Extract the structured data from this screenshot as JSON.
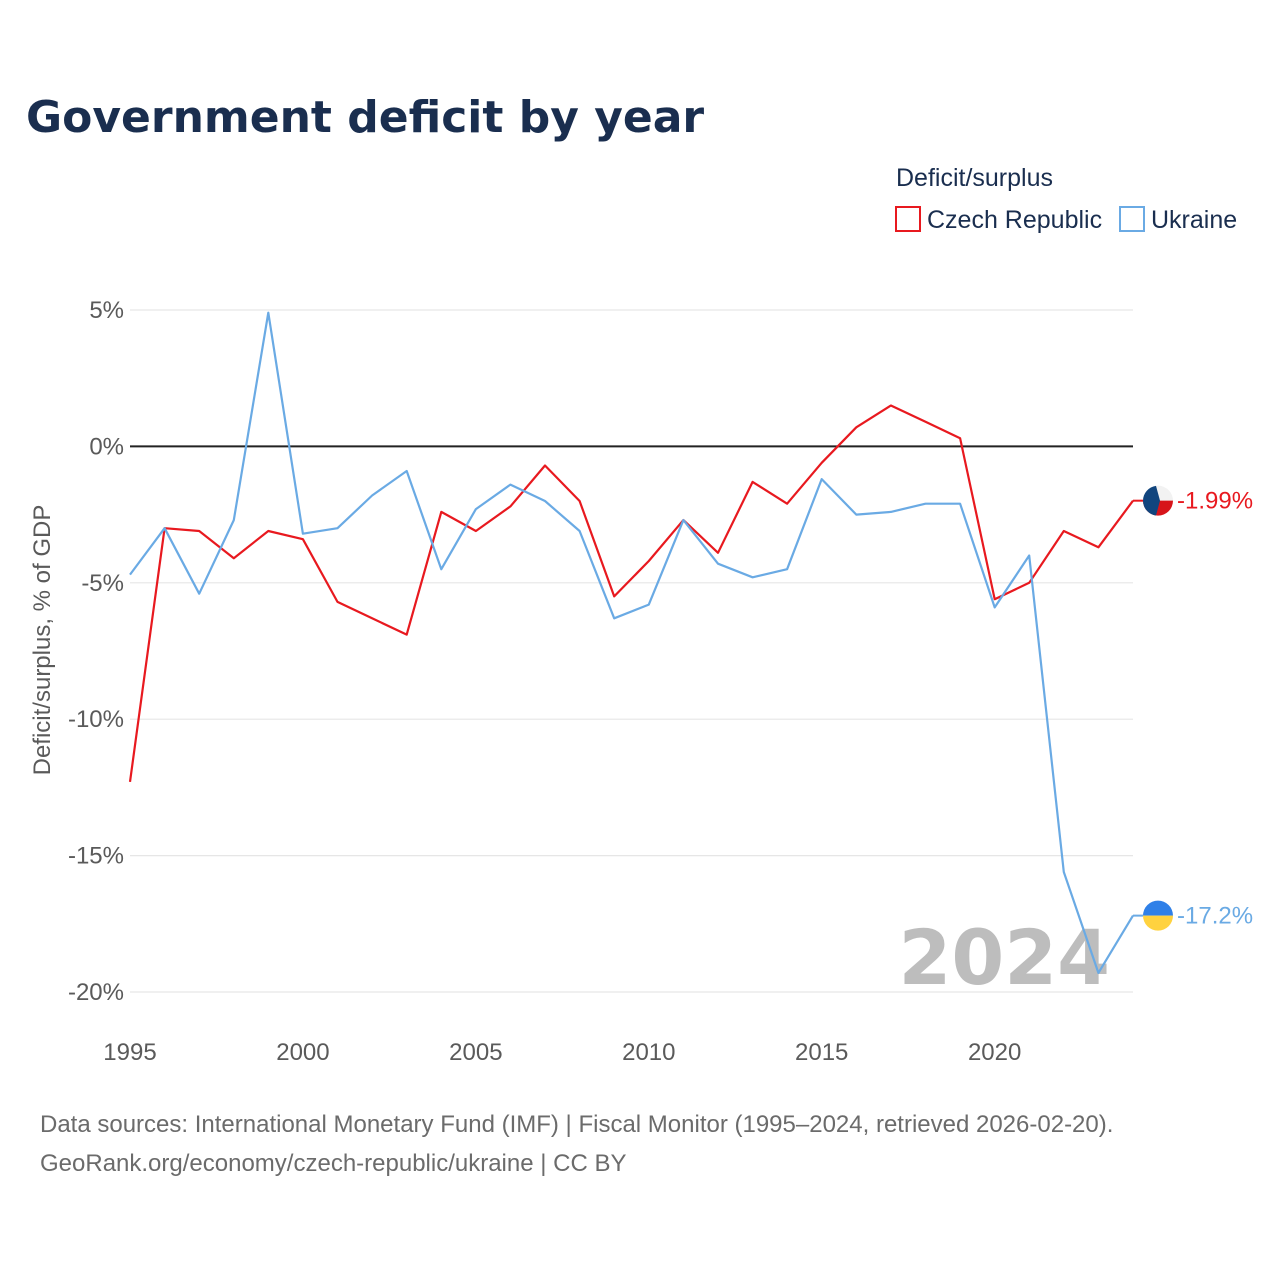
{
  "chart_data": {
    "type": "line",
    "title": "Government deficit by year",
    "legend_title": "Deficit/surplus",
    "legend_position": "top-right",
    "ylabel": "Deficit/surplus, % of GDP",
    "xlabel": "",
    "xlim": [
      1995,
      2024
    ],
    "ylim": [
      -20,
      5
    ],
    "x_ticks": [
      1995,
      2000,
      2005,
      2010,
      2015,
      2020
    ],
    "y_ticks": [
      5,
      0,
      -5,
      -10,
      -15,
      -20
    ],
    "x_tick_labels": [
      "1995",
      "2000",
      "2005",
      "2010",
      "2015",
      "2020"
    ],
    "y_tick_labels": [
      "5%",
      "0%",
      "-5%",
      "-10%",
      "-15%",
      "-20%"
    ],
    "x": [
      1995,
      1996,
      1997,
      1998,
      1999,
      2000,
      2001,
      2002,
      2003,
      2004,
      2005,
      2006,
      2007,
      2008,
      2009,
      2010,
      2011,
      2012,
      2013,
      2014,
      2015,
      2016,
      2017,
      2018,
      2019,
      2020,
      2021,
      2022,
      2023,
      2024
    ],
    "series": [
      {
        "name": "Czech Republic",
        "color": "#e8191f",
        "values": [
          -12.3,
          -3.0,
          -3.1,
          -4.1,
          -3.1,
          -3.4,
          -5.7,
          -6.3,
          -6.9,
          -2.4,
          -3.1,
          -2.2,
          -0.7,
          -2.0,
          -5.5,
          -4.2,
          -2.7,
          -3.9,
          -1.3,
          -2.1,
          -0.6,
          0.7,
          1.5,
          0.9,
          0.3,
          -5.6,
          -5.0,
          -3.1,
          -3.7,
          -1.99
        ],
        "end_label": "-1.99%"
      },
      {
        "name": "Ukraine",
        "color": "#6aaae4",
        "values": [
          -4.7,
          -3.0,
          -5.4,
          -2.7,
          4.9,
          -3.2,
          -3.0,
          -1.8,
          -0.9,
          -4.5,
          -2.3,
          -1.4,
          -2.0,
          -3.1,
          -6.3,
          -5.8,
          -2.7,
          -4.3,
          -4.8,
          -4.5,
          -1.2,
          -2.5,
          -2.4,
          -2.1,
          -2.1,
          -5.9,
          -4.0,
          -15.6,
          -19.3,
          -17.2
        ],
        "end_label": "-17.2%"
      }
    ],
    "year_watermark": "2024",
    "footer": {
      "line1": "Data sources: International Monetary Fund (IMF) | Fiscal Monitor (1995–2024, retrieved 2026-02-20).",
      "line2": "GeoRank.org/economy/czech-republic/ukraine | CC BY"
    }
  }
}
